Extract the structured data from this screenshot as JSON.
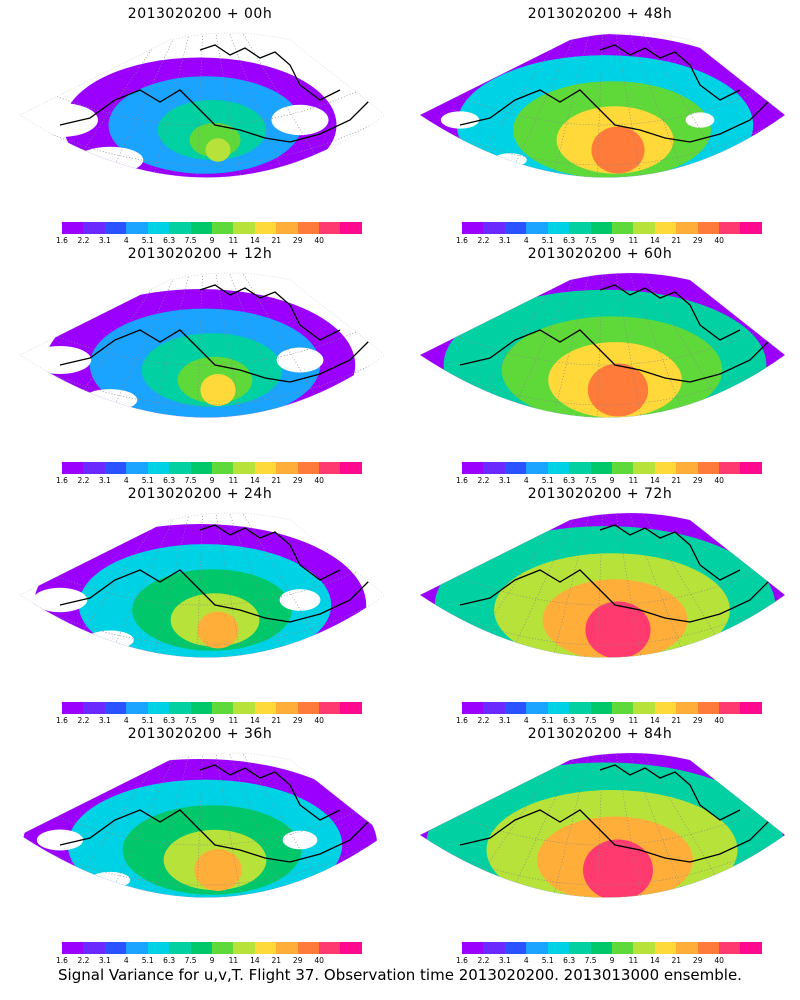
{
  "panels": [
    {
      "title": "2013020200 + 00h",
      "intensity": 0.15
    },
    {
      "title": "2013020200 + 48h",
      "intensity": 0.62
    },
    {
      "title": "2013020200 + 12h",
      "intensity": 0.32
    },
    {
      "title": "2013020200 + 60h",
      "intensity": 0.74
    },
    {
      "title": "2013020200 + 24h",
      "intensity": 0.42
    },
    {
      "title": "2013020200 + 72h",
      "intensity": 0.82
    },
    {
      "title": "2013020200 + 36h",
      "intensity": 0.52
    },
    {
      "title": "2013020200 + 84h",
      "intensity": 0.9
    }
  ],
  "colorbar": {
    "ticks": [
      "1.6",
      "2.2",
      "3.1",
      "4",
      "5.1",
      "6.3",
      "7.5",
      "9",
      "11",
      "14",
      "21",
      "29",
      "40"
    ],
    "colors": [
      "#9b00ff",
      "#6b28ff",
      "#2a52ff",
      "#1aa3ff",
      "#00d2e6",
      "#00d0a2",
      "#00c86a",
      "#5fd83a",
      "#b7e23a",
      "#ffd93a",
      "#ffae3a",
      "#ff7b3a",
      "#ff3a6e",
      "#ff0a8e"
    ]
  },
  "footer": "Signal Variance for u,v,T. Flight 37. Observation time 2013020200. 2013013000 ensemble."
}
